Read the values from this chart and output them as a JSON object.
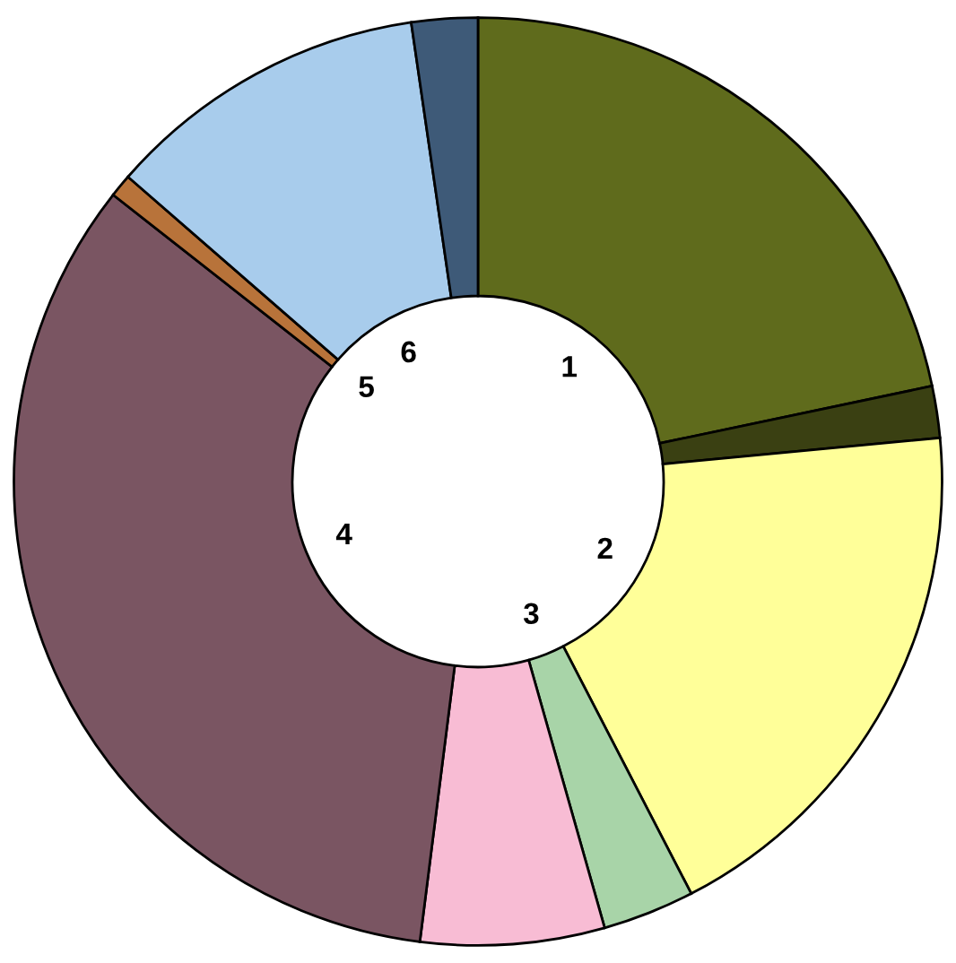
{
  "chart_data": {
    "type": "donut",
    "categories": [
      "1",
      null,
      "2",
      "3",
      null,
      "4",
      "5",
      "6",
      null
    ],
    "values": [
      21.7,
      1.8,
      18.9,
      3.2,
      6.4,
      33.6,
      0.8,
      11.3,
      2.3
    ],
    "colors": [
      "#5f6b1c",
      "#3a4012",
      "#ffff99",
      "#a8d4a8",
      "#f8bcd4",
      "#7a5562",
      "#b8733a",
      "#a8ccec",
      "#3e5a78"
    ]
  }
}
